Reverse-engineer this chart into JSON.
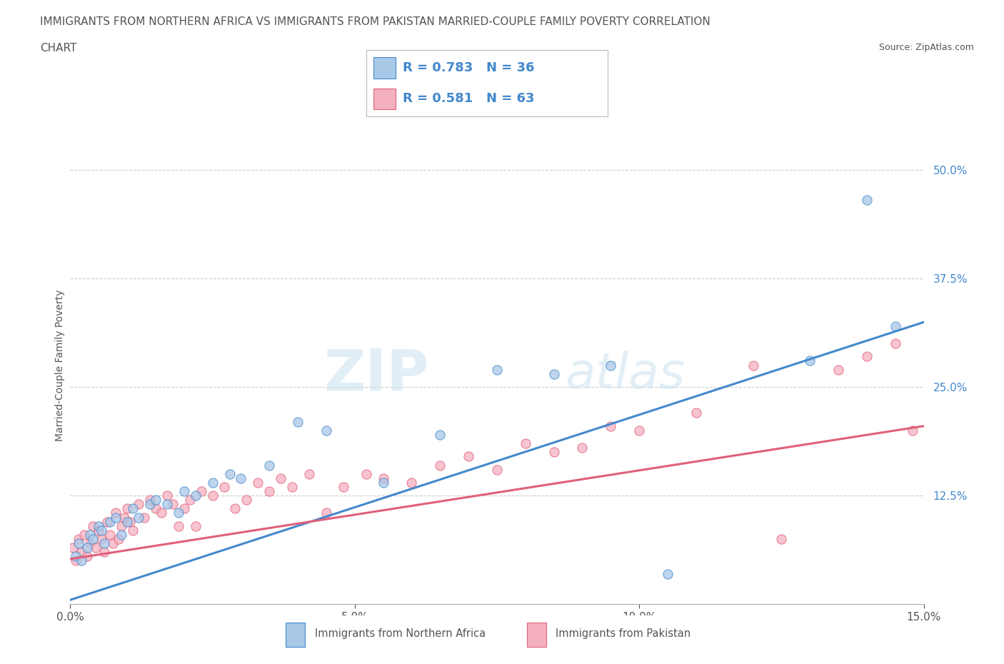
{
  "title_line1": "IMMIGRANTS FROM NORTHERN AFRICA VS IMMIGRANTS FROM PAKISTAN MARRIED-COUPLE FAMILY POVERTY CORRELATION",
  "title_line2": "CHART",
  "source": "Source: ZipAtlas.com",
  "ylabel": "Married-Couple Family Poverty",
  "xlabel_ticks": [
    "0.0%",
    "5.0%",
    "10.0%",
    "15.0%"
  ],
  "xlabel_vals": [
    0.0,
    5.0,
    10.0,
    15.0
  ],
  "ytick_labels": [
    "12.5%",
    "25.0%",
    "37.5%",
    "50.0%"
  ],
  "ytick_vals": [
    12.5,
    25.0,
    37.5,
    50.0
  ],
  "xmin": 0.0,
  "xmax": 15.0,
  "ymin": 0.0,
  "ymax": 55.0,
  "r_blue": 0.783,
  "n_blue": 36,
  "r_pink": 0.581,
  "n_pink": 63,
  "color_blue": "#a8c8e8",
  "color_blue_line": "#4488cc",
  "color_pink": "#f5b0c0",
  "color_pink_line": "#e0607a",
  "legend_label_blue": "Immigrants from Northern Africa",
  "legend_label_pink": "Immigrants from Pakistan",
  "watermark_zip": "ZIP",
  "watermark_atlas": "atlas",
  "background_color": "#ffffff",
  "grid_color": "#cccccc",
  "title_color": "#555555",
  "blue_intercept": 0.5,
  "blue_slope": 2.13,
  "pink_intercept": 5.2,
  "pink_slope": 1.02,
  "blue_scatter_x": [
    0.1,
    0.15,
    0.2,
    0.3,
    0.35,
    0.4,
    0.5,
    0.55,
    0.6,
    0.7,
    0.8,
    0.9,
    1.0,
    1.1,
    1.2,
    1.4,
    1.5,
    1.7,
    1.9,
    2.0,
    2.2,
    2.5,
    2.8,
    3.0,
    3.5,
    4.0,
    4.5,
    5.5,
    6.5,
    7.5,
    8.5,
    9.5,
    10.5,
    13.0,
    14.5,
    14.0
  ],
  "blue_scatter_y": [
    5.5,
    7.0,
    5.0,
    6.5,
    8.0,
    7.5,
    9.0,
    8.5,
    7.0,
    9.5,
    10.0,
    8.0,
    9.5,
    11.0,
    10.0,
    11.5,
    12.0,
    11.5,
    10.5,
    13.0,
    12.5,
    14.0,
    15.0,
    14.5,
    16.0,
    21.0,
    20.0,
    14.0,
    19.5,
    27.0,
    26.5,
    27.5,
    3.5,
    28.0,
    32.0,
    46.5
  ],
  "pink_scatter_x": [
    0.05,
    0.1,
    0.15,
    0.2,
    0.25,
    0.3,
    0.35,
    0.4,
    0.45,
    0.5,
    0.55,
    0.6,
    0.65,
    0.7,
    0.75,
    0.8,
    0.85,
    0.9,
    0.95,
    1.0,
    1.05,
    1.1,
    1.2,
    1.3,
    1.4,
    1.5,
    1.6,
    1.7,
    1.8,
    1.9,
    2.0,
    2.1,
    2.2,
    2.3,
    2.5,
    2.7,
    2.9,
    3.1,
    3.3,
    3.5,
    3.7,
    3.9,
    4.2,
    4.5,
    4.8,
    5.2,
    5.5,
    6.0,
    6.5,
    7.0,
    7.5,
    8.0,
    8.5,
    9.0,
    9.5,
    10.0,
    11.0,
    12.0,
    12.5,
    13.5,
    14.0,
    14.5,
    14.8
  ],
  "pink_scatter_y": [
    6.5,
    5.0,
    7.5,
    6.0,
    8.0,
    5.5,
    7.0,
    9.0,
    6.5,
    8.5,
    7.5,
    6.0,
    9.5,
    8.0,
    7.0,
    10.5,
    7.5,
    9.0,
    10.0,
    11.0,
    9.5,
    8.5,
    11.5,
    10.0,
    12.0,
    11.0,
    10.5,
    12.5,
    11.5,
    9.0,
    11.0,
    12.0,
    9.0,
    13.0,
    12.5,
    13.5,
    11.0,
    12.0,
    14.0,
    13.0,
    14.5,
    13.5,
    15.0,
    10.5,
    13.5,
    15.0,
    14.5,
    14.0,
    16.0,
    17.0,
    15.5,
    18.5,
    17.5,
    18.0,
    20.5,
    20.0,
    22.0,
    27.5,
    7.5,
    27.0,
    28.5,
    30.0,
    20.0
  ]
}
